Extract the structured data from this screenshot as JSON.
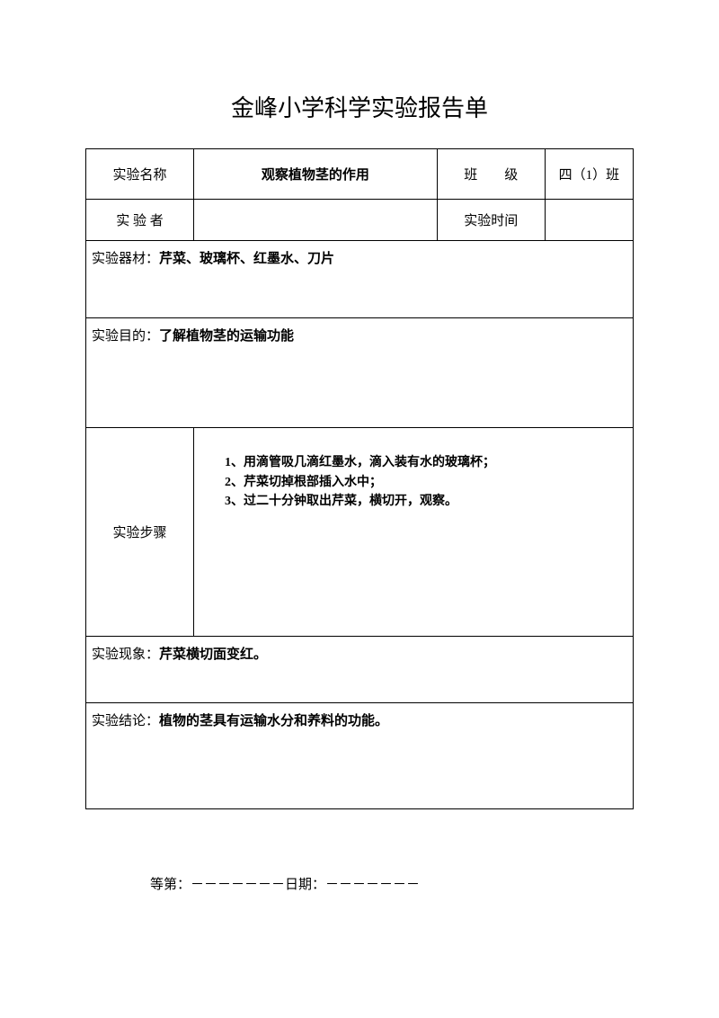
{
  "title": "金峰小学科学实验报告单",
  "row1": {
    "name_label": "实验名称",
    "name_value": "观察植物茎的作用",
    "class_label": "班  级",
    "class_value": "四（1）班"
  },
  "row2": {
    "experimenter_label": "实 验 者",
    "experimenter_value": "",
    "time_label": "实验时间",
    "time_value": ""
  },
  "materials": {
    "label": "实验器材：",
    "value": "芹菜、玻璃杯、红墨水、刀片"
  },
  "purpose": {
    "label": "实验目的：",
    "value": "了解植物茎的运输功能"
  },
  "steps": {
    "label": "实验步骤",
    "line1": "1、用滴管吸几滴红墨水，滴入装有水的玻璃杯；",
    "line2": "2、芹菜切掉根部插入水中；",
    "line3": "3、过二十分钟取出芹菜，横切开，观察。"
  },
  "phenomenon": {
    "label": "实验现象：",
    "value": "芹菜横切面变红。"
  },
  "conclusion": {
    "label": "实验结论：",
    "value": "植物的茎具有运输水分和养料的功能。"
  },
  "footer": {
    "grade_label": "等第：",
    "date_label": "日期：",
    "dash_seq": "－－－－－－－"
  }
}
